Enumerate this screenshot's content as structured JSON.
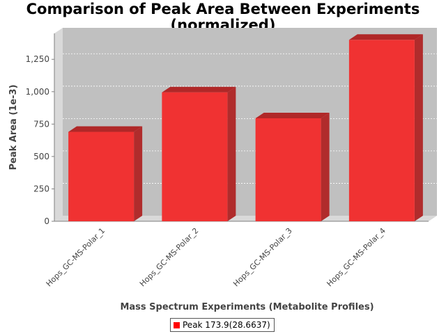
{
  "chart_data": {
    "type": "bar",
    "title": [
      "Comparison of Peak Area Between Experiments",
      "(normalized)"
    ],
    "xlabel": "Mass Spectrum Experiments (Metabolite Profiles)",
    "ylabel": "Peak Area (1e-3)",
    "ylim": [
      0,
      1450
    ],
    "yticks": [
      0,
      250,
      500,
      750,
      1000,
      1250
    ],
    "ytick_labels": [
      "0",
      "250",
      "500",
      "750",
      "1,000",
      "1,250"
    ],
    "categories": [
      "Hops_GC-MS-Polar_1",
      "Hops_GC-MS-Polar_2",
      "Hops_GC-MS-Polar_3",
      "Hops_GC-MS-Polar_4"
    ],
    "series": [
      {
        "name": "Peak 173.9(28.6637)",
        "values": [
          690,
          995,
          795,
          1400
        ]
      }
    ],
    "grid": true,
    "legend_position": "bottom",
    "colors": {
      "bar_front": "#f03232",
      "bar_top": "#b02828",
      "bar_side": "#b02c2c",
      "plot_back": "#c0c0c0",
      "plot_side": "#d9d9d9",
      "legend_swatch": "#ff0000"
    }
  }
}
